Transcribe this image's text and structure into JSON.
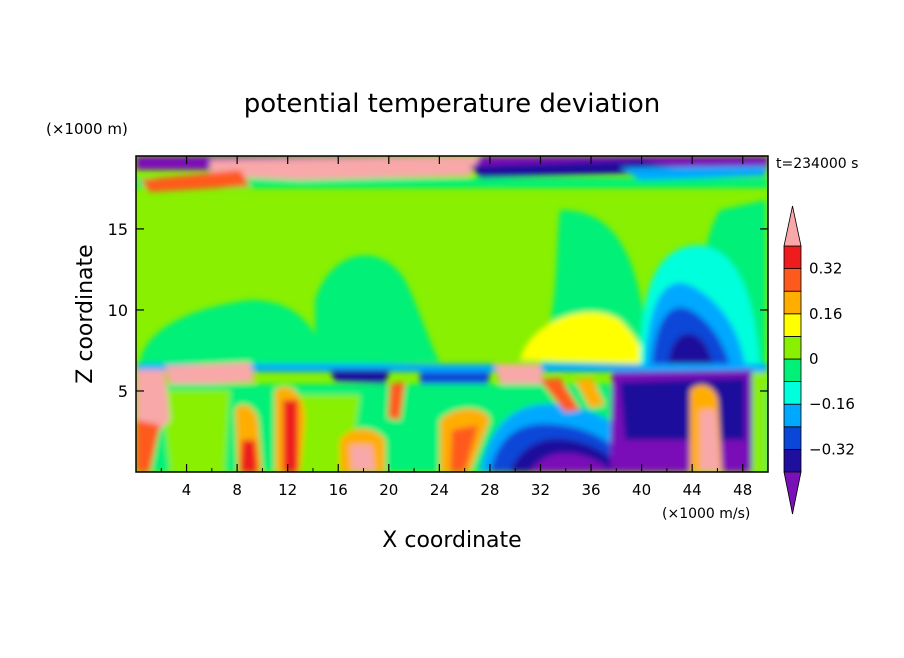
{
  "chart_data": {
    "type": "heatmap",
    "title": "potential temperature deviation",
    "xlabel": "X coordinate",
    "ylabel": "Z coordinate",
    "x_unit": "(×1000 m/s)",
    "y_unit": "(×1000 m)",
    "time_label": "t=234000 s",
    "xlim": [
      0,
      50
    ],
    "ylim": [
      0,
      19.5
    ],
    "x_ticks": [
      4,
      8,
      12,
      16,
      20,
      24,
      28,
      32,
      36,
      40,
      44,
      48
    ],
    "y_ticks": [
      5,
      10,
      15
    ],
    "colorbar": {
      "levels": [
        -0.4,
        -0.32,
        -0.24,
        -0.16,
        -0.08,
        0,
        0.08,
        0.16,
        0.24,
        0.32,
        0.4
      ],
      "labels": [
        "0.32",
        "0.16",
        "0",
        "−0.16",
        "−0.32"
      ],
      "label_values": [
        0.32,
        0.16,
        0,
        -0.16,
        -0.32
      ],
      "colors": [
        "#7a10b8",
        "#1e0f9c",
        "#0a46d8",
        "#00a8ff",
        "#00ffdc",
        "#00f078",
        "#88f000",
        "#ffff00",
        "#ffae00",
        "#ff5a1e",
        "#ee1c1c",
        "#f8a8a8"
      ]
    }
  }
}
